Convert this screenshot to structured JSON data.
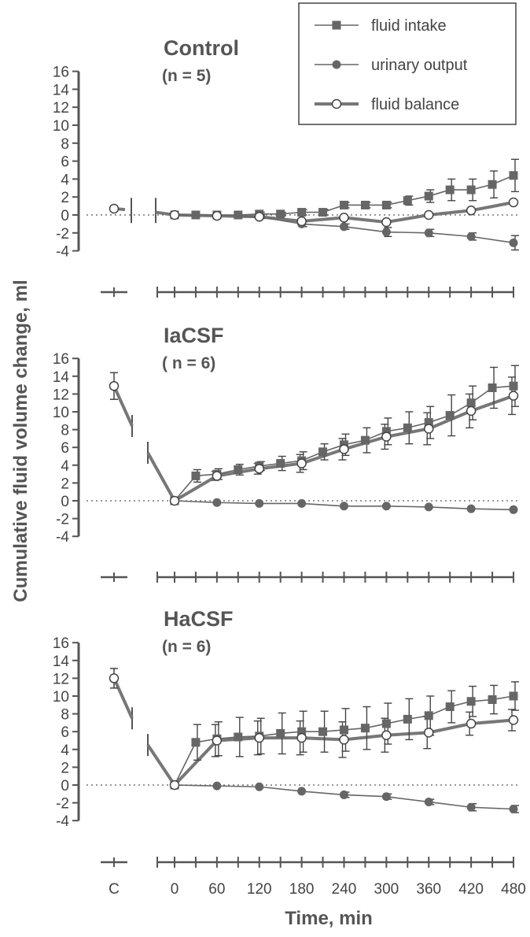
{
  "figure": {
    "ylabel": "Cumulative fluid volume change, ml",
    "xlabel": "Time, min",
    "control_tick_label": "C",
    "legend": [
      {
        "key": "intake",
        "label": "fluid intake",
        "marker": "square-filled"
      },
      {
        "key": "urine",
        "label": "urinary output",
        "marker": "circle-filled"
      },
      {
        "key": "balance",
        "label": "fluid balance",
        "marker": "circle-open"
      }
    ],
    "colors": {
      "axis": "#555555",
      "intake": "#666666",
      "urine": "#666666",
      "balance": "#777777",
      "open_fill": "#ffffff"
    }
  },
  "chart_data": [
    {
      "type": "line",
      "title": "Control",
      "subtitle": "(n = 5)",
      "xlabel": "Time, min",
      "ylabel": "Cumulative fluid volume change, ml",
      "ylim": [
        -4,
        16
      ],
      "yticks": [
        -4,
        -2,
        0,
        2,
        4,
        6,
        8,
        10,
        12,
        14,
        16
      ],
      "xticks": [
        0,
        60,
        120,
        180,
        240,
        300,
        360,
        420,
        480
      ],
      "control_point": {
        "series": "balance",
        "value": 0.7
      },
      "series": [
        {
          "key": "intake",
          "name": "fluid intake",
          "x": [
            0,
            30,
            60,
            90,
            120,
            150,
            180,
            210,
            240,
            270,
            300,
            330,
            360,
            390,
            420,
            450,
            480
          ],
          "y": [
            0,
            0,
            0,
            0,
            0.1,
            0.1,
            0.3,
            0.3,
            1.1,
            1.1,
            1.1,
            1.6,
            2.1,
            2.8,
            2.8,
            3.4,
            4.4
          ],
          "err": [
            0,
            0,
            0,
            0,
            0.2,
            0.2,
            0.3,
            0.3,
            0.3,
            0.3,
            0.3,
            0.5,
            0.7,
            1.2,
            1.2,
            1.5,
            1.8
          ]
        },
        {
          "key": "urine",
          "name": "urinary output",
          "x": [
            0,
            60,
            120,
            180,
            240,
            300,
            360,
            420,
            480
          ],
          "y": [
            0,
            0,
            -0.2,
            -1.0,
            -1.3,
            -1.9,
            -2.0,
            -2.4,
            -3.1
          ],
          "err": [
            0,
            0,
            0.2,
            0.3,
            0.3,
            0.5,
            0.4,
            0.4,
            0.8
          ]
        },
        {
          "key": "balance",
          "name": "fluid balance",
          "x": [
            0,
            60,
            120,
            180,
            240,
            300,
            360,
            420,
            480
          ],
          "y": [
            0,
            -0.1,
            -0.2,
            -0.7,
            -0.3,
            -0.8,
            0.0,
            0.5,
            1.4
          ],
          "err": [
            0,
            0,
            0,
            0,
            0,
            0,
            0,
            0,
            0
          ]
        }
      ]
    },
    {
      "type": "line",
      "title": "IaCSF",
      "subtitle": "( n = 6)",
      "xlabel": "Time, min",
      "ylabel": "Cumulative fluid volume change, ml",
      "ylim": [
        -4,
        16
      ],
      "yticks": [
        -4,
        -2,
        0,
        2,
        4,
        6,
        8,
        10,
        12,
        14,
        16
      ],
      "xticks": [
        0,
        60,
        120,
        180,
        240,
        300,
        360,
        420,
        480
      ],
      "control_point": {
        "series": "balance",
        "value": 12.9,
        "err": 1.5
      },
      "series": [
        {
          "key": "intake",
          "name": "fluid intake",
          "x": [
            0,
            30,
            60,
            90,
            120,
            150,
            180,
            210,
            240,
            270,
            300,
            330,
            360,
            390,
            420,
            450,
            480
          ],
          "y": [
            0,
            2.8,
            3.0,
            3.5,
            3.9,
            4.2,
            4.5,
            5.5,
            6.3,
            6.8,
            7.8,
            8.2,
            8.8,
            9.6,
            11.0,
            12.7,
            12.9
          ],
          "err": [
            0,
            0.7,
            0.6,
            0.6,
            0.5,
            0.8,
            1.0,
            0.9,
            1.2,
            1.4,
            1.5,
            1.8,
            1.8,
            2.3,
            1.9,
            2.3,
            2.3
          ]
        },
        {
          "key": "urine",
          "name": "urinary output",
          "x": [
            0,
            60,
            120,
            180,
            240,
            300,
            360,
            420,
            480
          ],
          "y": [
            0,
            -0.2,
            -0.3,
            -0.3,
            -0.6,
            -0.6,
            -0.7,
            -0.9,
            -1.0
          ],
          "err": [
            0,
            0,
            0,
            0,
            0,
            0,
            0,
            0,
            0
          ]
        },
        {
          "key": "balance",
          "name": "fluid balance",
          "x": [
            0,
            60,
            120,
            180,
            240,
            300,
            360,
            420,
            480
          ],
          "y": [
            0,
            2.8,
            3.6,
            4.2,
            5.8,
            7.2,
            8.1,
            10.1,
            11.8
          ],
          "err": [
            0,
            0.5,
            0.6,
            1.0,
            1.2,
            1.4,
            1.8,
            1.9,
            2.1
          ]
        }
      ]
    },
    {
      "type": "line",
      "title": "HaCSF",
      "subtitle": "(n = 6)",
      "xlabel": "Time, min",
      "ylabel": "Cumulative fluid volume change, ml",
      "ylim": [
        -4,
        16
      ],
      "yticks": [
        -4,
        -2,
        0,
        2,
        4,
        6,
        8,
        10,
        12,
        14,
        16
      ],
      "xticks": [
        0,
        60,
        120,
        180,
        240,
        300,
        360,
        420,
        480
      ],
      "control_point": {
        "series": "balance",
        "value": 12.0,
        "err": 1.1
      },
      "series": [
        {
          "key": "intake",
          "name": "fluid intake",
          "x": [
            0,
            30,
            60,
            90,
            120,
            150,
            180,
            210,
            240,
            270,
            300,
            330,
            360,
            390,
            420,
            450,
            480
          ],
          "y": [
            0,
            4.8,
            5.2,
            5.4,
            5.5,
            5.8,
            6.0,
            6.0,
            6.2,
            6.4,
            6.9,
            7.4,
            7.8,
            8.8,
            9.4,
            9.6,
            10.0
          ],
          "err": [
            0,
            2.0,
            1.9,
            2.2,
            2.0,
            2.3,
            2.3,
            2.3,
            2.4,
            2.4,
            2.3,
            2.3,
            2.2,
            1.8,
            1.7,
            1.6,
            1.6
          ]
        },
        {
          "key": "urine",
          "name": "urinary output",
          "x": [
            0,
            60,
            120,
            180,
            240,
            300,
            360,
            420,
            480
          ],
          "y": [
            0,
            -0.1,
            -0.2,
            -0.7,
            -1.1,
            -1.3,
            -1.9,
            -2.5,
            -2.7
          ],
          "err": [
            0,
            0,
            0,
            0,
            0.3,
            0.3,
            0.3,
            0.4,
            0.4
          ]
        },
        {
          "key": "balance",
          "name": "fluid balance",
          "x": [
            0,
            60,
            120,
            180,
            240,
            300,
            360,
            420,
            480
          ],
          "y": [
            0,
            5.0,
            5.3,
            5.3,
            5.1,
            5.6,
            5.9,
            6.9,
            7.3
          ],
          "err": [
            0,
            1.8,
            1.9,
            1.9,
            2.0,
            1.9,
            1.8,
            1.3,
            1.2
          ]
        }
      ]
    }
  ]
}
